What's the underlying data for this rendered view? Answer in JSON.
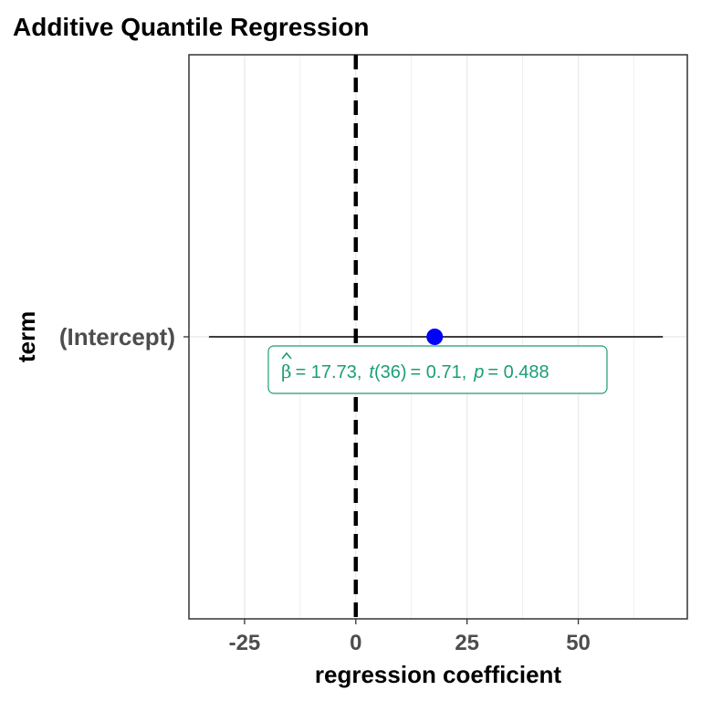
{
  "chart_data": {
    "type": "scatter",
    "title": "Additive Quantile Regression",
    "xlabel": "regression coefficient",
    "ylabel": "term",
    "xlim": [
      -37.5,
      74.5
    ],
    "xticks": [
      -25,
      0,
      25,
      50
    ],
    "xtick_labels": [
      "-25",
      "0",
      "25",
      "50"
    ],
    "categories": [
      "(Intercept)"
    ],
    "points": [
      {
        "term": "(Intercept)",
        "estimate": 17.73,
        "ci_low": -33,
        "ci_high": 69
      }
    ],
    "reference_line": 0,
    "grid": true,
    "annotation": {
      "beta_symbol": "β",
      "eq_beta": "= 17.73,",
      "t_symbol": "t",
      "t_args": "(36)",
      "eq_t": "= 0.71,",
      "p_symbol": "p",
      "eq_p": "= 0.488"
    },
    "colors": {
      "point": "#0000ff",
      "label": "#1b9e77",
      "errorbar": "#000000",
      "reference_line": "#000000",
      "grid": "#ebebeb",
      "panel_border": "#333333"
    }
  }
}
